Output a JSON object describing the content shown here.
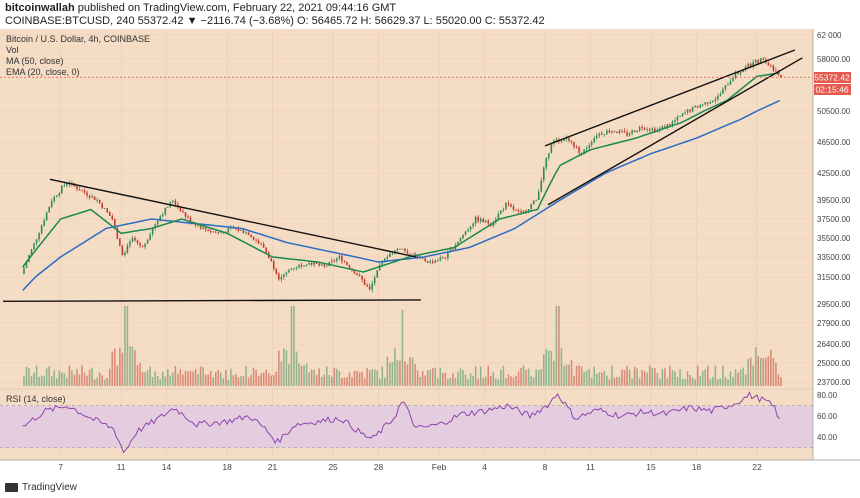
{
  "header": {
    "line1_user": "bitcoinwallah",
    "line1_rest": "published on TradingView.com, February 22, 2021 09:44:16 GMT",
    "line2": "COINBASE:BTCUSD, 240  55372.42  ▼ −2116.74 (−3.68%)  O: 56465.72  H: 56629.37  L: 55020.00  C: 55372.42"
  },
  "chart_overlay": {
    "title": "Bitcoin / U.S. Dollar, 4h, COINBASE",
    "vol_label": "Vol",
    "ma_label": "MA (50, close)",
    "ema_label": "EMA (20, close, 0)",
    "rsi_label": "RSI (14, close)"
  },
  "price_badge": {
    "price": "55372.42",
    "countdown": "02:15:46"
  },
  "footer": {
    "brand": "TradingView"
  },
  "colors": {
    "background": "#f5dcc4",
    "up": "#2e8b57",
    "down": "#c0392b",
    "ema": "#1a8a50",
    "ma": "#2b6cc4",
    "trendline": "#111111",
    "rsi_line": "#8e44ad",
    "rsi_band": "#e5cde0",
    "price_badge": "#e55a4e"
  },
  "chart_data": [
    {
      "type": "candlestick",
      "title": "Bitcoin / U.S. Dollar, 4h, COINBASE",
      "y_axis_ticks": [
        62000,
        58000,
        55372.42,
        50500,
        46500,
        42500,
        39500,
        37500,
        35500,
        33500,
        31500,
        29500,
        27900,
        26400,
        25000,
        23700
      ],
      "ylim": [
        22500,
        62000
      ],
      "x_axis_ticks": [
        "7",
        "11",
        "14",
        "18",
        "21",
        "25",
        "28",
        "Feb",
        "4",
        "8",
        "11",
        "15",
        "18",
        "22"
      ],
      "price_path": [
        {
          "day": 4.5,
          "price": 31800
        },
        {
          "day": 5.5,
          "price": 35500
        },
        {
          "day": 6.5,
          "price": 39500
        },
        {
          "day": 7.5,
          "price": 41500
        },
        {
          "day": 8.5,
          "price": 40500
        },
        {
          "day": 9.5,
          "price": 39500
        },
        {
          "day": 10.5,
          "price": 37500
        },
        {
          "day": 11.2,
          "price": 33500
        },
        {
          "day": 11.8,
          "price": 35500
        },
        {
          "day": 12.5,
          "price": 34500
        },
        {
          "day": 13.5,
          "price": 37500
        },
        {
          "day": 14.5,
          "price": 39500
        },
        {
          "day": 15.5,
          "price": 37500
        },
        {
          "day": 16.5,
          "price": 36500
        },
        {
          "day": 17.5,
          "price": 36000
        },
        {
          "day": 18.5,
          "price": 36500
        },
        {
          "day": 19.5,
          "price": 36000
        },
        {
          "day": 20.5,
          "price": 34500
        },
        {
          "day": 21.5,
          "price": 31500
        },
        {
          "day": 22.5,
          "price": 32500
        },
        {
          "day": 23.5,
          "price": 33000
        },
        {
          "day": 24.5,
          "price": 32500
        },
        {
          "day": 25.5,
          "price": 33500
        },
        {
          "day": 26.5,
          "price": 32000
        },
        {
          "day": 27.5,
          "price": 30500
        },
        {
          "day": 28.5,
          "price": 33500
        },
        {
          "day": 29.5,
          "price": 34500
        },
        {
          "day": 30.5,
          "price": 33500
        },
        {
          "day": 31.5,
          "price": 33000
        },
        {
          "day": 32.5,
          "price": 33500
        },
        {
          "day": 33.5,
          "price": 35500
        },
        {
          "day": 34.5,
          "price": 37500
        },
        {
          "day": 35.5,
          "price": 37000
        },
        {
          "day": 36.5,
          "price": 39000
        },
        {
          "day": 37.5,
          "price": 38000
        },
        {
          "day": 38.5,
          "price": 39500
        },
        {
          "day": 39.5,
          "price": 46500
        },
        {
          "day": 40.5,
          "price": 47000
        },
        {
          "day": 41.5,
          "price": 45000
        },
        {
          "day": 42.5,
          "price": 47500
        },
        {
          "day": 43.5,
          "price": 48000
        },
        {
          "day": 44.5,
          "price": 47500
        },
        {
          "day": 45.5,
          "price": 48500
        },
        {
          "day": 46.5,
          "price": 48000
        },
        {
          "day": 47.5,
          "price": 49000
        },
        {
          "day": 48.5,
          "price": 50500
        },
        {
          "day": 49.5,
          "price": 51500
        },
        {
          "day": 50.5,
          "price": 52500
        },
        {
          "day": 51.5,
          "price": 55500
        },
        {
          "day": 52.5,
          "price": 57000
        },
        {
          "day": 53.5,
          "price": 58000
        },
        {
          "day": 54.2,
          "price": 56500
        },
        {
          "day": 54.5,
          "price": 55372.42
        }
      ],
      "ema20_path": [
        {
          "day": 4.5,
          "price": 32500
        },
        {
          "day": 7,
          "price": 37500
        },
        {
          "day": 9,
          "price": 38500
        },
        {
          "day": 11,
          "price": 36000
        },
        {
          "day": 13,
          "price": 36500
        },
        {
          "day": 15,
          "price": 37500
        },
        {
          "day": 18,
          "price": 36000
        },
        {
          "day": 21,
          "price": 33500
        },
        {
          "day": 24,
          "price": 33000
        },
        {
          "day": 27,
          "price": 32000
        },
        {
          "day": 30,
          "price": 33500
        },
        {
          "day": 33,
          "price": 34500
        },
        {
          "day": 36,
          "price": 37500
        },
        {
          "day": 38.5,
          "price": 38500
        },
        {
          "day": 40,
          "price": 43500
        },
        {
          "day": 42,
          "price": 45500
        },
        {
          "day": 45,
          "price": 47000
        },
        {
          "day": 48,
          "price": 49000
        },
        {
          "day": 51,
          "price": 52000
        },
        {
          "day": 53,
          "price": 55500
        },
        {
          "day": 54.5,
          "price": 56000
        }
      ],
      "ma50_path": [
        {
          "day": 4.5,
          "price": 30500
        },
        {
          "day": 7,
          "price": 33500
        },
        {
          "day": 10,
          "price": 36500
        },
        {
          "day": 13,
          "price": 37500
        },
        {
          "day": 16,
          "price": 37000
        },
        {
          "day": 19,
          "price": 36500
        },
        {
          "day": 22,
          "price": 35000
        },
        {
          "day": 25,
          "price": 34000
        },
        {
          "day": 28,
          "price": 33000
        },
        {
          "day": 31,
          "price": 33500
        },
        {
          "day": 34,
          "price": 34500
        },
        {
          "day": 37,
          "price": 36500
        },
        {
          "day": 40,
          "price": 39500
        },
        {
          "day": 43,
          "price": 42500
        },
        {
          "day": 46,
          "price": 45000
        },
        {
          "day": 49,
          "price": 47000
        },
        {
          "day": 52,
          "price": 49500
        },
        {
          "day": 54.5,
          "price": 52000
        }
      ],
      "trendlines": [
        {
          "name": "descending resistance",
          "from": {
            "day": 6.3,
            "price": 41800
          },
          "to": {
            "day": 30.5,
            "price": 33500
          }
        },
        {
          "name": "horizontal support",
          "from": {
            "day": 3.2,
            "price": 29700
          },
          "to": {
            "day": 30.8,
            "price": 29800
          }
        },
        {
          "name": "rising wedge upper",
          "from": {
            "day": 39,
            "price": 46000
          },
          "to": {
            "day": 55.5,
            "price": 59500
          }
        },
        {
          "name": "rising wedge lower",
          "from": {
            "day": 39.2,
            "price": 39000
          },
          "to": {
            "day": 56,
            "price": 58200
          }
        }
      ]
    },
    {
      "type": "bar",
      "title": "Vol",
      "note": "Volume histogram under the price chart, green = up candle, red = down candle",
      "spikes": [
        {
          "day": 11.3,
          "relative": 1.0
        },
        {
          "day": 22.3,
          "relative": 1.0
        },
        {
          "day": 29.5,
          "relative": 0.95
        },
        {
          "day": 39.7,
          "relative": 1.0
        },
        {
          "day": 53.3,
          "relative": 0.35
        }
      ]
    },
    {
      "type": "line",
      "title": "RSI (14, close)",
      "ylim": [
        20,
        85
      ],
      "band": [
        30,
        70
      ],
      "y_axis_ticks": [
        80,
        60,
        40
      ],
      "path": [
        {
          "day": 4.5,
          "price": 50
        },
        {
          "day": 6,
          "price": 65
        },
        {
          "day": 7.5,
          "price": 70
        },
        {
          "day": 9,
          "price": 58
        },
        {
          "day": 10.5,
          "price": 48
        },
        {
          "day": 11.2,
          "price": 25
        },
        {
          "day": 12,
          "price": 45
        },
        {
          "day": 13.5,
          "price": 58
        },
        {
          "day": 14.5,
          "price": 68
        },
        {
          "day": 16,
          "price": 52
        },
        {
          "day": 18,
          "price": 55
        },
        {
          "day": 19.5,
          "price": 60
        },
        {
          "day": 20.5,
          "price": 48
        },
        {
          "day": 21.3,
          "price": 35
        },
        {
          "day": 22.5,
          "price": 52
        },
        {
          "day": 24,
          "price": 55
        },
        {
          "day": 25.5,
          "price": 58
        },
        {
          "day": 27,
          "price": 42
        },
        {
          "day": 27.6,
          "price": 38
        },
        {
          "day": 29,
          "price": 58
        },
        {
          "day": 29.6,
          "price": 75
        },
        {
          "day": 30.5,
          "price": 48
        },
        {
          "day": 32,
          "price": 52
        },
        {
          "day": 33.5,
          "price": 62
        },
        {
          "day": 35,
          "price": 65
        },
        {
          "day": 36.5,
          "price": 70
        },
        {
          "day": 38,
          "price": 60
        },
        {
          "day": 39.3,
          "price": 72
        },
        {
          "day": 39.8,
          "price": 82
        },
        {
          "day": 41,
          "price": 58
        },
        {
          "day": 42.5,
          "price": 66
        },
        {
          "day": 44,
          "price": 60
        },
        {
          "day": 45.5,
          "price": 64
        },
        {
          "day": 47,
          "price": 62
        },
        {
          "day": 48.5,
          "price": 68
        },
        {
          "day": 50,
          "price": 65
        },
        {
          "day": 51.5,
          "price": 72
        },
        {
          "day": 52.5,
          "price": 80
        },
        {
          "day": 53.5,
          "price": 75
        },
        {
          "day": 54.2,
          "price": 68
        },
        {
          "day": 54.5,
          "price": 55
        }
      ]
    }
  ]
}
